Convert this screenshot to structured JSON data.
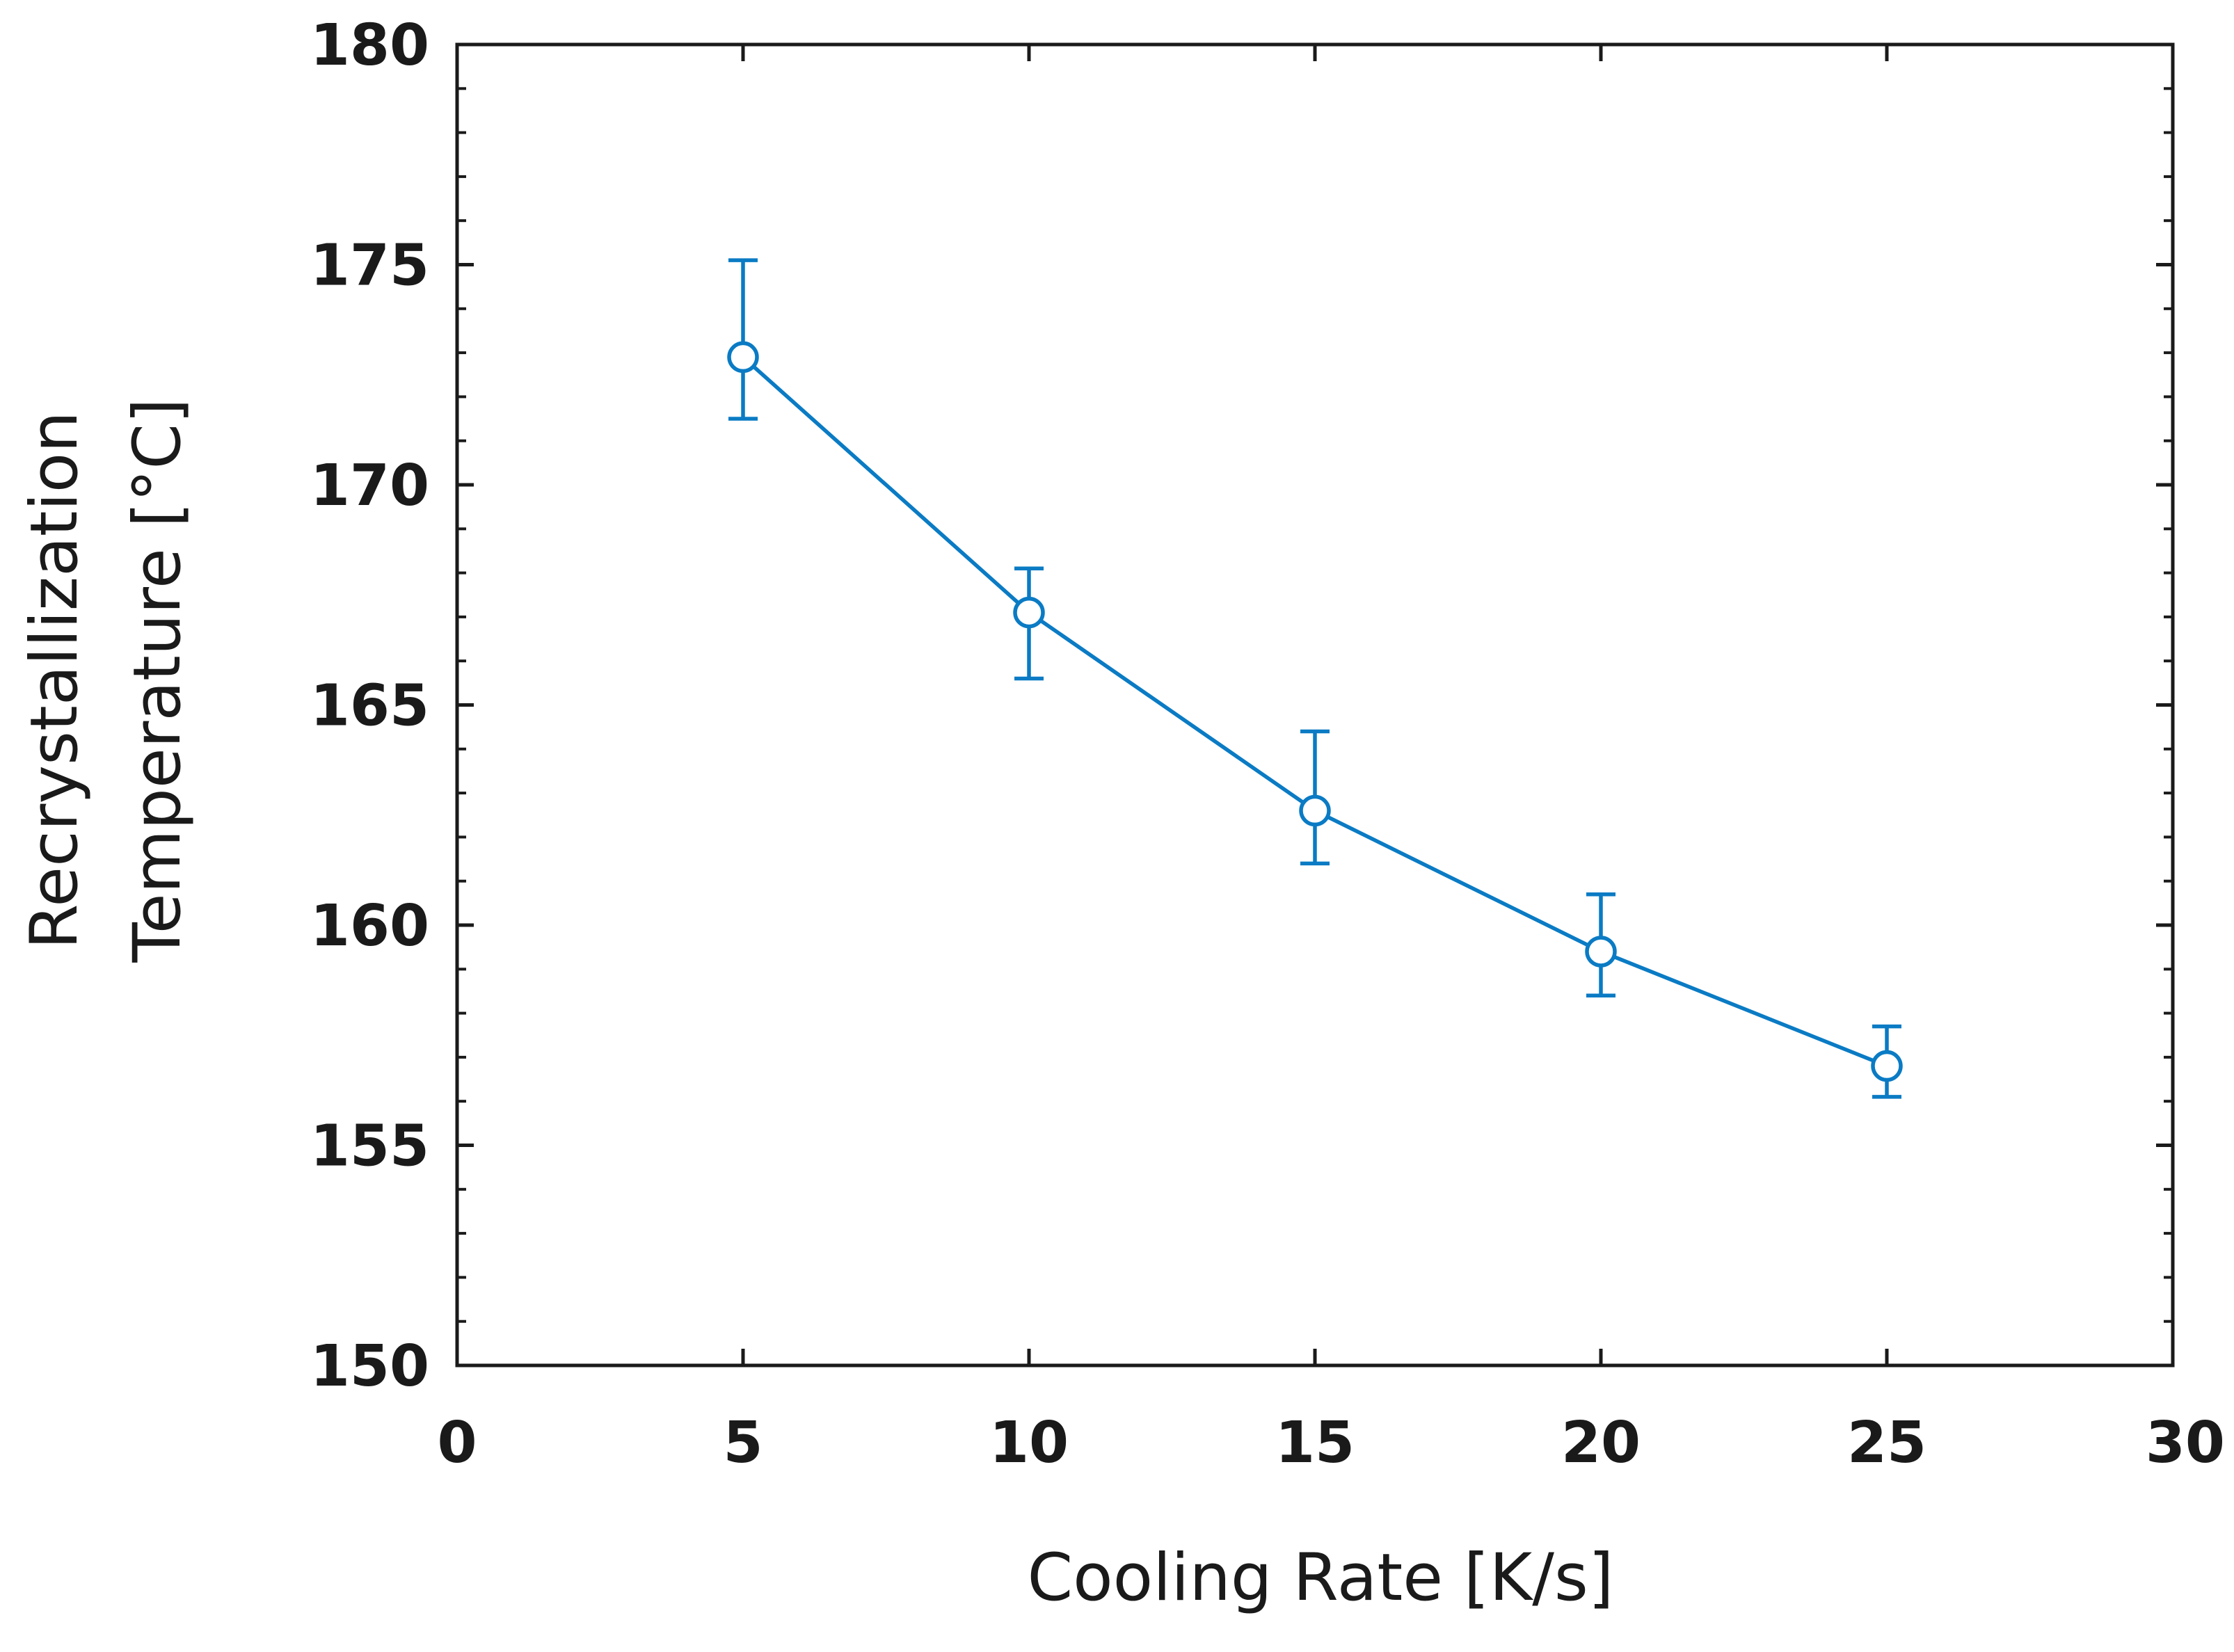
{
  "chart_data": {
    "type": "line",
    "xlabel": "Cooling Rate [K/s]",
    "ylabel_lines": [
      "Recrystallization",
      "Temperature [°C]"
    ],
    "xlim": [
      0,
      30
    ],
    "ylim": [
      150,
      180
    ],
    "x_ticks": [
      "0",
      "5",
      "10",
      "15",
      "20",
      "25",
      "30"
    ],
    "y_ticks": [
      "150",
      "155",
      "160",
      "165",
      "170",
      "175",
      "180"
    ],
    "grid": false,
    "legend": "none",
    "marker": "open-circle",
    "color": "#0a7bc4",
    "series": [
      {
        "x": [
          5,
          10,
          15,
          20,
          25
        ],
        "y": [
          172.9,
          167.1,
          162.6,
          159.4,
          156.8
        ],
        "y_lower": [
          171.5,
          165.6,
          161.4,
          158.4,
          156.1
        ],
        "y_upper": [
          175.1,
          168.1,
          164.4,
          160.7,
          157.7
        ]
      }
    ]
  }
}
